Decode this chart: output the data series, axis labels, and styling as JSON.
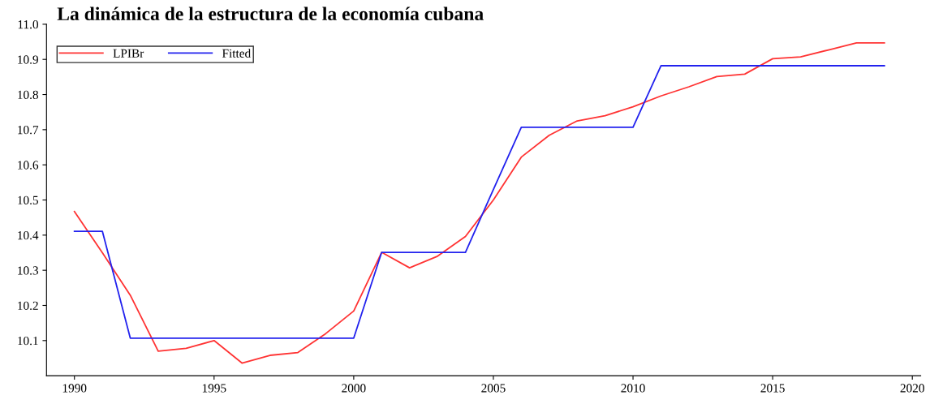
{
  "chart_data": {
    "type": "line",
    "title": "La dinámica de la estructura de la economía cubana",
    "x": [
      1990,
      1991,
      1992,
      1993,
      1994,
      1995,
      1996,
      1997,
      1998,
      1999,
      2000,
      2001,
      2002,
      2003,
      2004,
      2005,
      2006,
      2007,
      2008,
      2009,
      2010,
      2011,
      2012,
      2013,
      2014,
      2015,
      2016,
      2017,
      2018,
      2019
    ],
    "series": [
      {
        "name": "LPIBr",
        "color": "#ff3333",
        "values": [
          10.467,
          10.35,
          10.229,
          10.07,
          10.078,
          10.1,
          10.036,
          10.058,
          10.066,
          10.12,
          10.184,
          10.351,
          10.307,
          10.34,
          10.396,
          10.5,
          10.622,
          10.684,
          10.725,
          10.74,
          10.765,
          10.796,
          10.822,
          10.851,
          10.858,
          10.902,
          10.907,
          10.927,
          10.947,
          10.947
        ]
      },
      {
        "name": "Fitted",
        "color": "#2222ee",
        "values": [
          10.411,
          10.411,
          10.107,
          10.107,
          10.107,
          10.107,
          10.107,
          10.107,
          10.107,
          10.107,
          10.107,
          10.351,
          10.351,
          10.351,
          10.351,
          10.53,
          10.707,
          10.707,
          10.707,
          10.707,
          10.707,
          10.882,
          10.882,
          10.882,
          10.882,
          10.882,
          10.882,
          10.882,
          10.882,
          10.882
        ]
      }
    ],
    "xlim": [
      1989,
      2020.3
    ],
    "ylim": [
      10.0,
      11.0
    ],
    "xticks": [
      1990,
      1995,
      2000,
      2005,
      2010,
      2015,
      2020
    ],
    "yticks": [
      {
        "value": 10.1,
        "label": "10.1"
      },
      {
        "value": 10.2,
        "label": "10.2"
      },
      {
        "value": 10.3,
        "label": "10.3"
      },
      {
        "value": 10.4,
        "label": "10.4"
      },
      {
        "value": 10.5,
        "label": "10.5"
      },
      {
        "value": 10.6,
        "label": "10.6"
      },
      {
        "value": 10.7,
        "label": "10.7"
      },
      {
        "value": 10.8,
        "label": "10.8"
      },
      {
        "value": 10.9,
        "label": "10.9"
      },
      {
        "value": 11.0,
        "label": "11.0"
      }
    ],
    "grid": false,
    "legend": "top left",
    "marker": "none",
    "line_style": "solid"
  }
}
